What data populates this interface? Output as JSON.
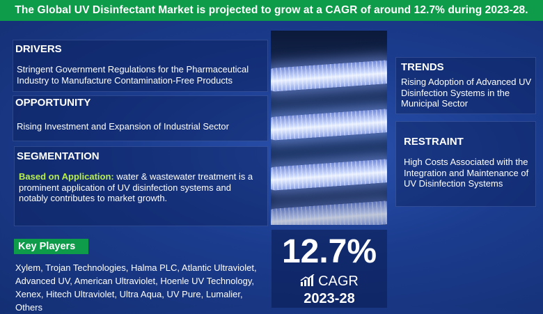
{
  "banner": {
    "text": "The Global UV Disinfectant Market is projected to grow at a CAGR of around 12.7% during  2023-28."
  },
  "drivers": {
    "title": "DRIVERS",
    "text": "Stringent Government Regulations for the Pharmaceutical Industry to Manufacture Contamination-Free Products"
  },
  "opportunity": {
    "title": "OPPORTUNITY",
    "text": "Rising Investment and Expansion of Industrial Sector"
  },
  "segmentation": {
    "title": "SEGMENTATION",
    "highlight": "Based on Application:",
    "text": " water & wastewater treatment is a prominent application of UV disinfection systems and notably contributes to market growth."
  },
  "trends": {
    "title": "TRENDS",
    "text": "Rising Adoption of Advanced UV Disinfection Systems in the Municipal Sector"
  },
  "restraint": {
    "title": "RESTRAINT",
    "text": "High Costs Associated with the Integration and Maintenance of UV Disinfection Systems"
  },
  "cagr": {
    "value": "12.7%",
    "label": "CAGR",
    "years": "2023-28"
  },
  "key_players": {
    "title": "Key Players",
    "text": "Xylem, Trojan Technologies, Halma PLC, Atlantic Ultraviolet, Advanced UV, American Ultraviolet, Hoenle UV Technology, Xenex, Hitech Ultraviolet, Ultra Aqua, UV Pure, Lumalier, Others"
  },
  "colors": {
    "background": "#1b3c8e",
    "banner": "#0f9c4a",
    "highlight": "#b8f04a"
  },
  "icons": {
    "cagr": "bar-chart-up-icon"
  }
}
